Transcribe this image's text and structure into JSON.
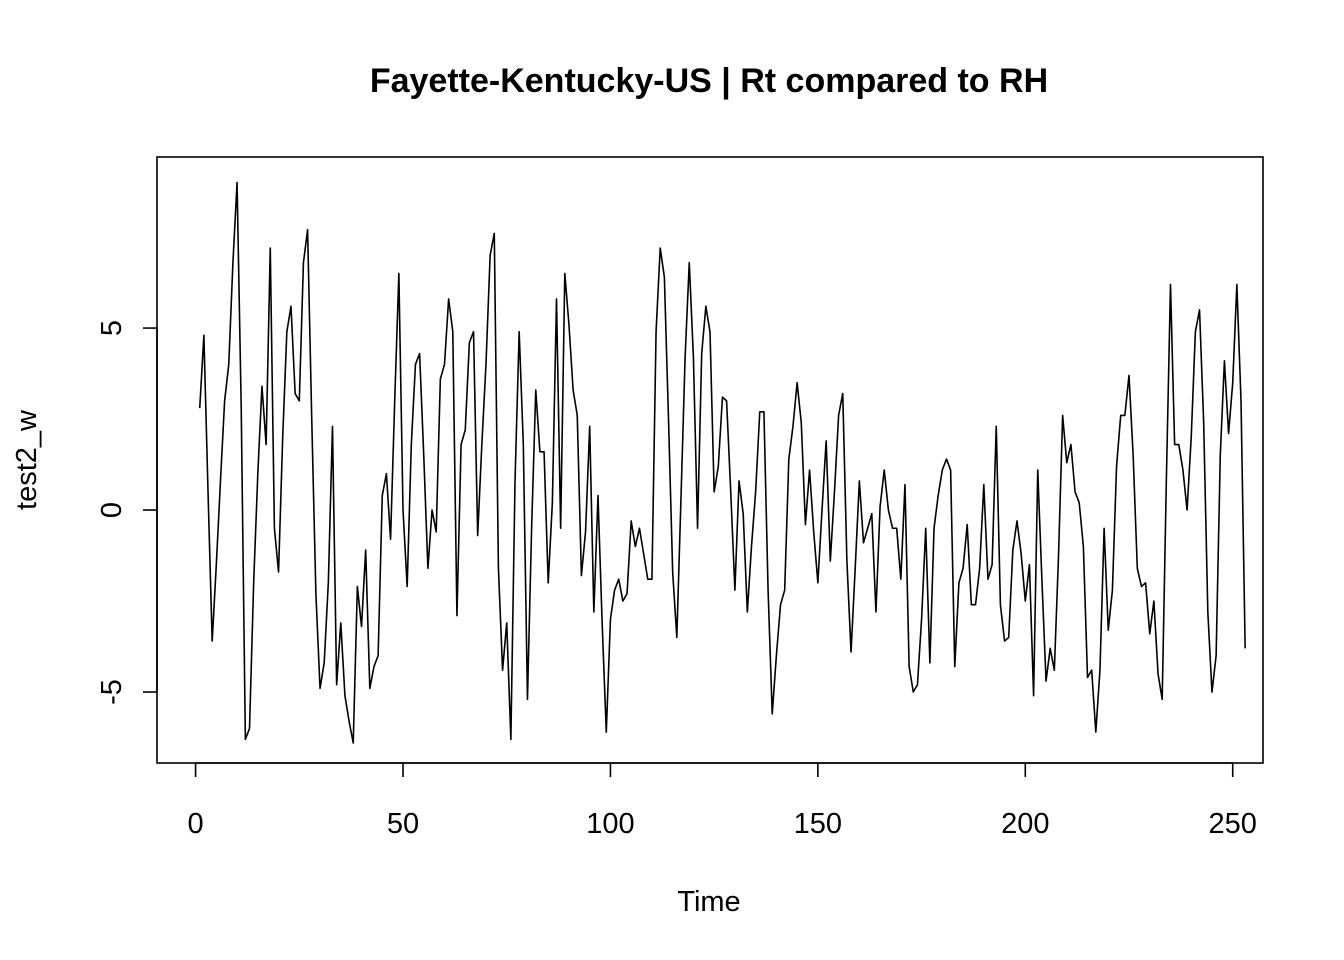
{
  "chart_data": {
    "type": "line",
    "title": "Fayette-Kentucky-US | Rt compared to RH",
    "xlabel": "Time",
    "ylabel": "test2_w",
    "xlim": [
      -9.3,
      257.3
    ],
    "ylim": [
      -6.95,
      9.7
    ],
    "x_ticks": [
      0,
      50,
      100,
      150,
      200,
      250
    ],
    "y_ticks": [
      -5,
      0,
      5
    ],
    "x_tick_labels": [
      "0",
      "50",
      "100",
      "150",
      "200",
      "250"
    ],
    "y_tick_labels": [
      "-5",
      "0",
      "5"
    ],
    "grid": false,
    "line_color": "#000000",
    "x_start": 1,
    "series": [
      {
        "values": [
          2.8,
          4.8,
          0.5,
          -3.6,
          -1.5,
          0.8,
          3.0,
          4.0,
          6.8,
          9.0,
          2.8,
          -6.3,
          -6.0,
          -2.0,
          1.0,
          3.4,
          1.8,
          7.2,
          -0.5,
          -1.7,
          2.0,
          4.9,
          5.6,
          3.2,
          3.0,
          6.8,
          7.7,
          2.5,
          -2.3,
          -4.9,
          -4.2,
          -2.0,
          2.3,
          -4.8,
          -3.1,
          -5.1,
          -5.8,
          -6.4,
          -2.1,
          -3.2,
          -1.1,
          -4.9,
          -4.3,
          -4.0,
          0.4,
          1.0,
          -0.8,
          3.0,
          6.5,
          0.0,
          -2.1,
          1.8,
          4.0,
          4.3,
          1.5,
          -1.6,
          0.0,
          -0.6,
          3.6,
          4.0,
          5.8,
          4.9,
          -2.9,
          1.8,
          2.2,
          4.6,
          4.9,
          -0.7,
          1.8,
          4.0,
          7.0,
          7.6,
          -1.6,
          -4.4,
          -3.1,
          -6.3,
          0.8,
          4.9,
          1.8,
          -5.2,
          -0.5,
          3.3,
          1.6,
          1.6,
          -2.0,
          0.2,
          5.8,
          -0.5,
          6.5,
          5.1,
          3.3,
          2.6,
          -1.8,
          -0.6,
          2.3,
          -2.8,
          0.4,
          -3.1,
          -6.1,
          -3.0,
          -2.2,
          -1.9,
          -2.5,
          -2.3,
          -0.3,
          -1.0,
          -0.5,
          -1.2,
          -1.9,
          -1.9,
          4.9,
          7.2,
          6.4,
          2.5,
          -1.7,
          -3.5,
          0.3,
          4.2,
          6.8,
          4.2,
          -0.5,
          4.3,
          5.6,
          4.9,
          0.5,
          1.2,
          3.1,
          3.0,
          0.5,
          -2.2,
          0.8,
          -0.1,
          -2.8,
          -1.0,
          0.5,
          2.7,
          2.7,
          -2.2,
          -5.6,
          -4.0,
          -2.6,
          -2.2,
          1.4,
          2.3,
          3.5,
          2.4,
          -0.4,
          1.1,
          -0.6,
          -2.0,
          0.0,
          1.9,
          -1.4,
          0.5,
          2.6,
          3.2,
          -1.4,
          -3.9,
          -1.6,
          0.8,
          -0.9,
          -0.5,
          -0.1,
          -2.8,
          0.1,
          1.1,
          0.0,
          -0.5,
          -0.5,
          -1.9,
          0.7,
          -4.3,
          -5.0,
          -4.8,
          -3.0,
          -0.5,
          -4.2,
          -0.5,
          0.4,
          1.1,
          1.4,
          1.1,
          -4.3,
          -2.0,
          -1.6,
          -0.4,
          -2.6,
          -2.6,
          -1.6,
          0.7,
          -1.9,
          -1.5,
          2.3,
          -2.6,
          -3.6,
          -3.5,
          -1.1,
          -0.3,
          -1.2,
          -2.5,
          -1.5,
          -5.1,
          1.1,
          -1.9,
          -4.7,
          -3.8,
          -4.4,
          -1.3,
          2.6,
          1.3,
          1.8,
          0.5,
          0.2,
          -1.0,
          -4.6,
          -4.4,
          -6.1,
          -4.4,
          -0.5,
          -3.3,
          -2.2,
          1.2,
          2.6,
          2.6,
          3.7,
          1.5,
          -1.6,
          -2.1,
          -2.0,
          -3.4,
          -2.5,
          -4.5,
          -5.2,
          0.8,
          6.2,
          1.8,
          1.8,
          1.1,
          0.0,
          2.0,
          4.9,
          5.5,
          2.4,
          -2.8,
          -5.0,
          -4.0,
          1.5,
          4.1,
          2.1,
          3.5,
          6.2,
          3.0,
          -3.8
        ]
      }
    ]
  }
}
